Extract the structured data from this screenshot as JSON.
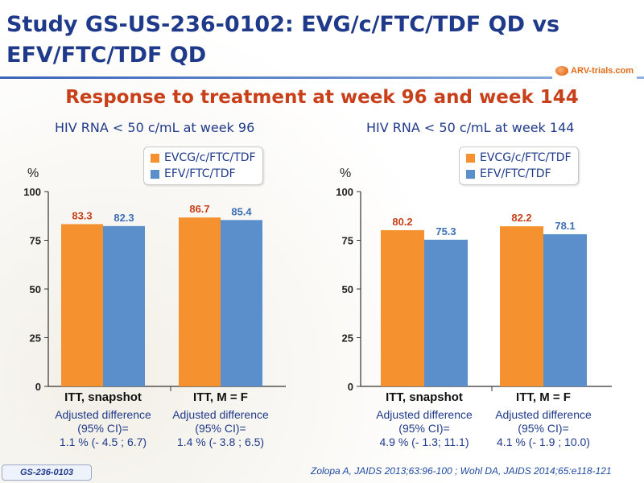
{
  "slide": {
    "title": "Study GS-US-236-0102: EVG/c/FTC/TDF QD vs EFV/FTC/TDF QD",
    "logo_text": "ARV-trials.com",
    "subtitle": "Response to treatment at week 96 and week 144",
    "footer_tag": "GS-236-0103",
    "footer_ref": "Zolopa A, JAIDS 2013;63:96-100 ; Wohl DA, JAIDS 2014;65:e118-121"
  },
  "colors": {
    "series1": "#f5922f",
    "series2": "#5b8fcc",
    "label1": "#c8401a",
    "label2": "#3d6fb5"
  },
  "chart_data": [
    {
      "type": "bar",
      "title": "HIV RNA < 50 c/mL at week 96",
      "ylabel": "%",
      "ylim": [
        0,
        100
      ],
      "yticks": [
        "0",
        "25",
        "50",
        "75",
        "100"
      ],
      "categories": [
        "ITT, snapshot",
        "ITT, M = F"
      ],
      "category_notes": [
        [
          "Adjusted difference",
          "(95% CI)=",
          "1.1 % (- 4.5 ; 6.7)"
        ],
        [
          "Adjusted difference",
          "(95% CI)=",
          "1.4 % (- 3.8 ; 6.5)"
        ]
      ],
      "series": [
        {
          "name": "EVCG/c/FTC/TDF",
          "values": [
            83.3,
            86.7
          ],
          "labels": [
            "83.3",
            "86.7"
          ]
        },
        {
          "name": "EFV/FTC/TDF",
          "values": [
            82.3,
            85.4
          ],
          "labels": [
            "82.3",
            "85.4"
          ]
        }
      ],
      "legend": "top"
    },
    {
      "type": "bar",
      "title": "HIV RNA < 50 c/mL at week 144",
      "ylabel": "%",
      "ylim": [
        0,
        100
      ],
      "yticks": [
        "0",
        "25",
        "50",
        "75",
        "100"
      ],
      "categories": [
        "ITT, snapshot",
        "ITT, M = F"
      ],
      "category_notes": [
        [
          "Adjusted difference",
          "(95% CI)=",
          "4.9 % (- 1.3; 11.1)"
        ],
        [
          "Adjusted difference",
          "(95% CI)=",
          "4.1 % (- 1.9 ; 10.0)"
        ]
      ],
      "series": [
        {
          "name": "EVCG/c/FTC/TDF",
          "values": [
            80.2,
            82.2
          ],
          "labels": [
            "80.2",
            "82.2"
          ]
        },
        {
          "name": "EFV/FTC/TDF",
          "values": [
            75.3,
            78.1
          ],
          "labels": [
            "75.3",
            "78.1"
          ]
        }
      ],
      "legend": "top"
    }
  ]
}
